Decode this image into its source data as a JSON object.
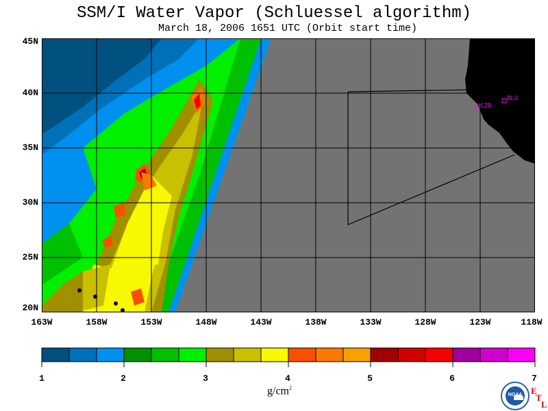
{
  "title": "SSM/I Water Vapor (Schluessel algorithm)",
  "subtitle": "March 18, 2006  1651 UTC  (Orbit start time)",
  "lat_labels": [
    "45N",
    "40N",
    "35N",
    "30N",
    "25N",
    "20N"
  ],
  "lon_labels": [
    "163W",
    "158W",
    "153W",
    "148W",
    "143W",
    "138W",
    "133W",
    "128W",
    "123W",
    "118W"
  ],
  "stations": [
    {
      "label": "CZD"
    },
    {
      "label": "BLU"
    }
  ],
  "colorbar": {
    "ticks": [
      "1",
      "2",
      "3",
      "4",
      "5",
      "6",
      "7"
    ],
    "colors": [
      "#005080",
      "#0070b8",
      "#0090f0",
      "#009000",
      "#00c000",
      "#00f000",
      "#a09000",
      "#c8c000",
      "#f8f800",
      "#f85000",
      "#f87800",
      "#f8a000",
      "#a00000",
      "#d00000",
      "#f80000",
      "#a000a0",
      "#d000d0",
      "#f800f8"
    ],
    "unit_text": "g/cm",
    "unit_exp": "2"
  },
  "logo": {
    "text": "NOAA",
    "lab": [
      "E",
      "T",
      "L"
    ]
  },
  "colors": {
    "land": "#000000",
    "nodata": "#737373",
    "grid": "#000000",
    "station": "#ff00ff"
  }
}
